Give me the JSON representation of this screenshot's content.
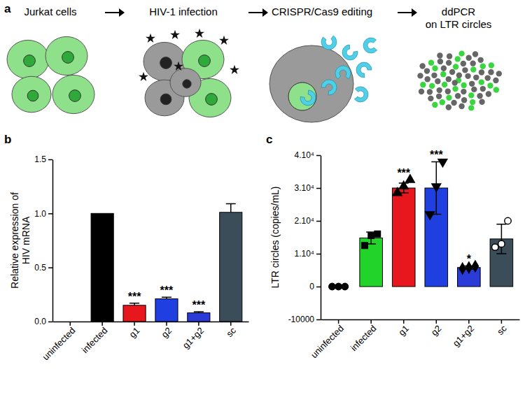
{
  "diagram": {
    "label": "a",
    "steps": [
      [
        "Jurkat cells"
      ],
      [
        "HIV-1 infection"
      ],
      [
        "CRISPR/Cas9 editing"
      ],
      [
        "ddPCR",
        "on LTR circles"
      ]
    ]
  },
  "chart_data": [
    {
      "type": "bar",
      "label": "b",
      "ylabel": [
        "Relative expression of",
        "HIV mRNA"
      ],
      "categories": [
        "uninfected",
        "infected",
        "g1",
        "g2",
        "g1+g2",
        "sc"
      ],
      "values": [
        0,
        1.0,
        0.15,
        0.21,
        0.08,
        1.01
      ],
      "errors": [
        0,
        0,
        0.02,
        0.015,
        0.01,
        0.08
      ],
      "colors": [
        "#ffffff",
        "#000000",
        "#e8161d",
        "#1f3fe0",
        "#2b3bd8",
        "#3b4d58"
      ],
      "annotations": [
        null,
        null,
        "***",
        "***",
        "***",
        null
      ],
      "ylim": [
        0,
        1.5
      ],
      "yticks": [
        {
          "value": 0,
          "label": "0.0"
        },
        {
          "value": 0.5,
          "label": "0.5"
        },
        {
          "value": 1.0,
          "label": "1.0"
        },
        {
          "value": 1.5,
          "label": "1.5"
        }
      ]
    },
    {
      "type": "bar",
      "label": "c",
      "ylabel": [
        "LTR circles (copies/mL)"
      ],
      "categories": [
        "uninfected",
        "infected",
        "g1",
        "g2",
        "g1+g2",
        "sc"
      ],
      "values": [
        0,
        14800,
        30000,
        30000,
        5800,
        14500
      ],
      "errors": [
        0,
        1800,
        1500,
        8000,
        500,
        4500
      ],
      "colors": [
        "#ffffff",
        "#22d42a",
        "#e8161d",
        "#1f3fe0",
        "#2b3bd8",
        "#3b4d58"
      ],
      "annotations": [
        null,
        null,
        "***",
        "***",
        "*",
        null
      ],
      "points": [
        {
          "marker": "circle",
          "values": [
            0,
            0,
            0
          ]
        },
        {
          "marker": "square",
          "values": [
            12500,
            15500,
            16000
          ]
        },
        {
          "marker": "triangle",
          "values": [
            28500,
            30500,
            32500
          ]
        },
        {
          "marker": "triangle-down",
          "values": [
            22000,
            30500,
            38000
          ]
        },
        {
          "marker": "diamond",
          "values": [
            5500,
            5800,
            6200
          ]
        },
        {
          "marker": "circle-open",
          "values": [
            12000,
            13000,
            20000
          ]
        }
      ],
      "ylim": [
        -10000,
        40000
      ],
      "yticks": [
        {
          "value": -10000,
          "label": "-10000"
        },
        0,
        {
          "value": 10000,
          "label": "1.10⁴"
        },
        {
          "value": 20000,
          "label": "2.10⁴"
        },
        {
          "value": 30000,
          "label": "3.10⁴"
        },
        {
          "value": 40000,
          "label": "4.10⁴"
        }
      ]
    }
  ]
}
